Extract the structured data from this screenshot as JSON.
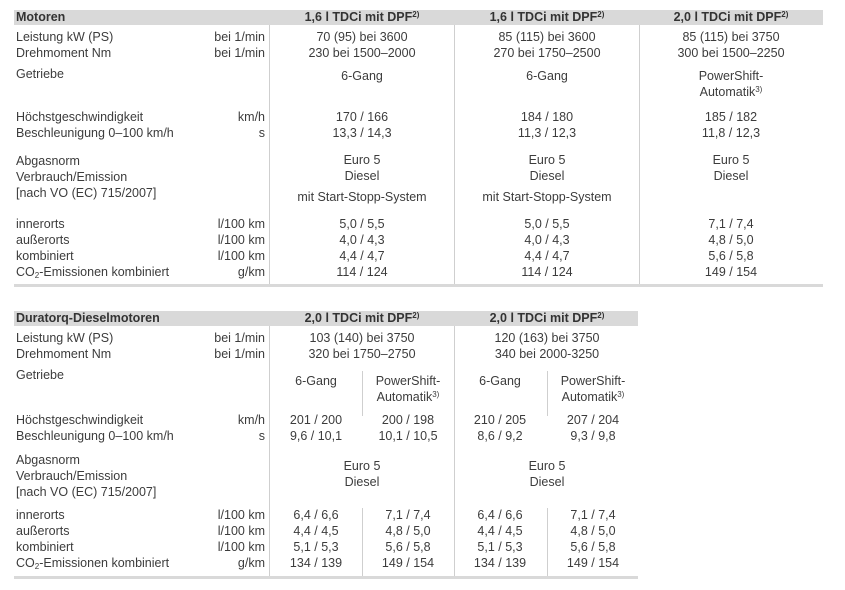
{
  "table1": {
    "title": "Motoren",
    "columns": [
      {
        "engine": "1,6 l TDCi mit DPF",
        "fn": "2)"
      },
      {
        "engine": "1,6 l TDCi mit DPF",
        "fn": "2)"
      },
      {
        "engine": "2,0 l TDCi mit DPF",
        "fn": "2)"
      }
    ],
    "labels": {
      "leistung": "Leistung kW (PS)",
      "drehmoment": "Drehmoment Nm",
      "getriebe": "Getriebe",
      "hoechst": "Höchstgeschwindigkeit",
      "beschl": "Beschleunigung 0–100 km/h",
      "abgas": "Abgasnorm",
      "verbrauch": "Verbrauch/Emission",
      "vo": "[nach VO (EC) 715/2007]",
      "innerorts": "innerorts",
      "ausserorts": "außerorts",
      "kombiniert": "kombiniert",
      "co2_a": "CO",
      "co2_sub": "2",
      "co2_b": "-Emissionen kombiniert"
    },
    "units": {
      "leistung": "bei 1/min",
      "drehmoment": "bei 1/min",
      "hoechst": "km/h",
      "beschl": "s",
      "innerorts": "l/100 km",
      "ausserorts": "l/100 km",
      "kombiniert": "l/100 km",
      "co2": "g/km"
    },
    "values": [
      {
        "leistung": "70 (95) bei 3600",
        "drehmoment": "230 bei 1500–2000",
        "getriebe": "6-Gang",
        "getriebe2": "",
        "getriebe_fn": "",
        "hoechst": "170 / 166",
        "beschl": "13,3 / 14,3",
        "abgas": "Euro 5",
        "kraftstoff": "Diesel",
        "system": "mit Start-Stopp-System",
        "innerorts": "5,0 / 5,5",
        "ausserorts": "4,0 / 4,3",
        "kombiniert": "4,4 / 4,7",
        "co2": "114 / 124"
      },
      {
        "leistung": "85 (115) bei 3600",
        "drehmoment": "270 bei 1750–2500",
        "getriebe": "6-Gang",
        "getriebe2": "",
        "getriebe_fn": "",
        "hoechst": "184 / 180",
        "beschl": "11,3 / 12,3",
        "abgas": "Euro 5",
        "kraftstoff": "Diesel",
        "system": "mit Start-Stopp-System",
        "innerorts": "5,0 / 5,5",
        "ausserorts": "4,0 / 4,3",
        "kombiniert": "4,4 / 4,7",
        "co2": "114 / 124"
      },
      {
        "leistung": "85 (115) bei 3750",
        "drehmoment": "300 bei 1500–2250",
        "getriebe": "PowerShift-",
        "getriebe2": "Automatik",
        "getriebe_fn": "3)",
        "hoechst": "185 / 182",
        "beschl": "11,8 / 12,3",
        "abgas": "Euro 5",
        "kraftstoff": "Diesel",
        "system": "",
        "innerorts": "7,1 / 7,4",
        "ausserorts": "4,8 / 5,0",
        "kombiniert": "5,6 / 5,8",
        "co2": "149 / 154"
      }
    ]
  },
  "table2": {
    "title": "Duratorq-Dieselmotoren",
    "columns": [
      {
        "engine": "2,0 l TDCi mit DPF",
        "fn": "2)",
        "leistung": "103 (140) bei 3750",
        "drehmoment": "320 bei 1750–2750",
        "abgas": "Euro 5",
        "kraftstoff": "Diesel"
      },
      {
        "engine": "2,0 l TDCi mit DPF",
        "fn": "2)",
        "leistung": "120 (163) bei 3750",
        "drehmoment": "340 bei 2000-3250",
        "abgas": "Euro 5",
        "kraftstoff": "Diesel"
      }
    ],
    "labels": {
      "leistung": "Leistung kW (PS)",
      "drehmoment": "Drehmoment Nm",
      "getriebe": "Getriebe",
      "hoechst": "Höchstgeschwindigkeit",
      "beschl": "Beschleunigung 0–100 km/h",
      "abgas": "Abgasnorm",
      "verbrauch": "Verbrauch/Emission",
      "vo": "[nach VO (EC) 715/2007]",
      "innerorts": "innerorts",
      "ausserorts": "außerorts",
      "kombiniert": "kombiniert",
      "co2_a": "CO",
      "co2_sub": "2",
      "co2_b": "-Emissionen kombiniert"
    },
    "units": {
      "leistung": "bei 1/min",
      "drehmoment": "bei 1/min",
      "hoechst": "km/h",
      "beschl": "s",
      "innerorts": "l/100 km",
      "ausserorts": "l/100 km",
      "kombiniert": "l/100 km",
      "co2": "g/km"
    },
    "subcolumns": [
      {
        "getriebe": "6-Gang",
        "getriebe2": "",
        "getriebe_fn": "",
        "hoechst": "201 / 200",
        "beschl": "9,6 / 10,1",
        "innerorts": "6,4 / 6,6",
        "ausserorts": "4,4 / 4,5",
        "kombiniert": "5,1 / 5,3",
        "co2": "134 / 139"
      },
      {
        "getriebe": "PowerShift-",
        "getriebe2": "Automatik",
        "getriebe_fn": "3)",
        "hoechst": "200 / 198",
        "beschl": "10,1 / 10,5",
        "innerorts": "7,1 / 7,4",
        "ausserorts": "4,8 / 5,0",
        "kombiniert": "5,6 / 5,8",
        "co2": "149 / 154"
      },
      {
        "getriebe": "6-Gang",
        "getriebe2": "",
        "getriebe_fn": "",
        "hoechst": "210 / 205",
        "beschl": "8,6 / 9,2",
        "innerorts": "6,4 / 6,6",
        "ausserorts": "4,4 / 4,5",
        "kombiniert": "5,1 / 5,3",
        "co2": "134 / 139"
      },
      {
        "getriebe": "PowerShift-",
        "getriebe2": "Automatik",
        "getriebe_fn": "3)",
        "hoechst": "207 / 204",
        "beschl": "9,3 / 9,8",
        "innerorts": "7,1 / 7,4",
        "ausserorts": "4,8 / 5,0",
        "kombiniert": "5,6 / 5,8",
        "co2": "149 / 154"
      }
    ]
  }
}
